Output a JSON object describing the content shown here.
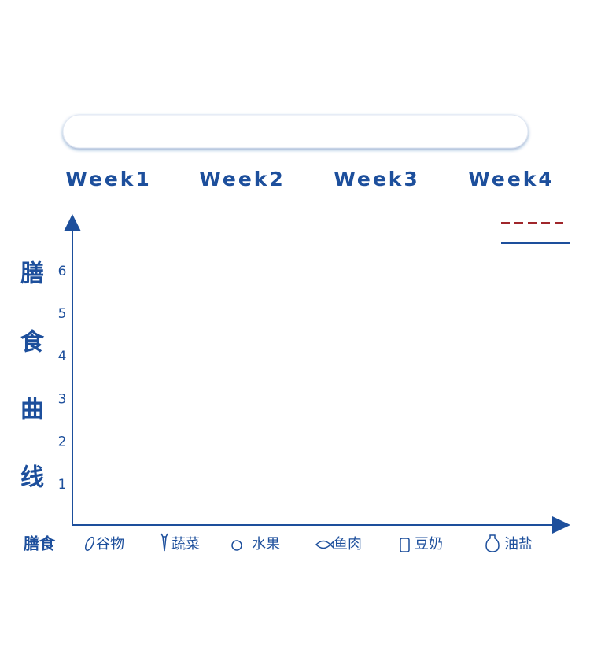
{
  "weeks": [
    "Week1",
    "Week2",
    "Week3",
    "Week4"
  ],
  "y_axis_label": [
    "膳",
    "食",
    "曲",
    "线"
  ],
  "y_ticks": [
    1,
    2,
    3,
    4,
    5,
    6
  ],
  "x_axis_label": "膳食",
  "categories": [
    "谷物",
    "蔬菜",
    "水果",
    "鱼肉",
    "豆奶",
    "油盐"
  ]
}
